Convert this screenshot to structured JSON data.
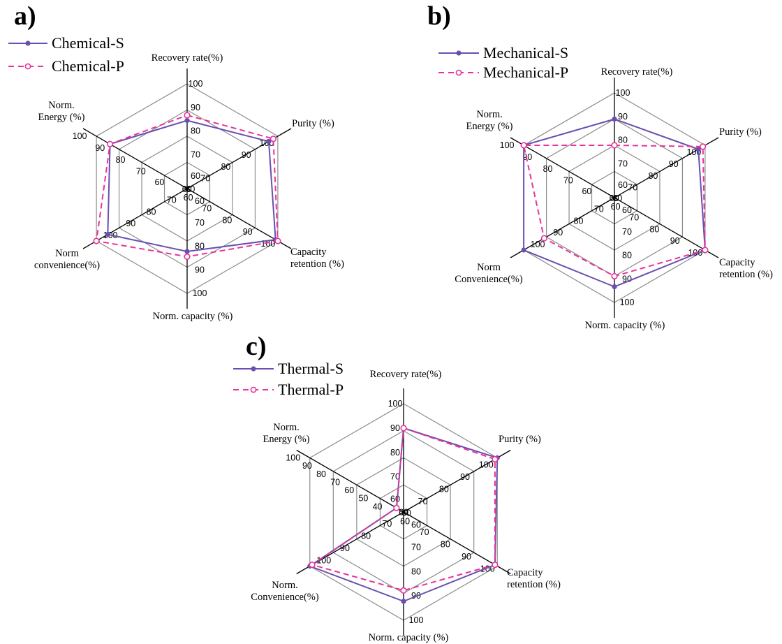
{
  "chart_data": [
    {
      "type": "radar",
      "panel": "a)",
      "axes": [
        "Recovery rate(%)",
        "Purity (%)",
        "Capacity\nretention (%)",
        "Norm. capacity (%)",
        "Norm\nconvenience(%)",
        "Norm.\nEnergy (%)"
      ],
      "rlim": [
        60,
        100
      ],
      "ring_values": [
        60,
        70,
        80,
        90,
        100
      ],
      "tick_labels": [
        [
          "60",
          "70",
          "80",
          "90",
          "100"
        ],
        [
          "60",
          "70",
          "80",
          "90",
          "100"
        ],
        [
          "60",
          "70",
          "80",
          "90",
          "100"
        ],
        [
          "60",
          "70",
          "80",
          "90",
          "100"
        ],
        [
          "60",
          "70",
          "80",
          "90",
          "100"
        ],
        [
          "60",
          "70",
          "80",
          "90",
          "100"
        ]
      ],
      "legend_position": "top-left",
      "series": [
        {
          "name": "Chemical-S",
          "color": "#6a4fb0",
          "style": "solid",
          "marker": "filled-circle",
          "values": [
            86,
            96,
            99,
            84,
            95,
            94
          ]
        },
        {
          "name": "Chemical-P",
          "color": "#e8339a",
          "style": "dashed",
          "marker": "open-circle",
          "values": [
            88,
            98,
            100,
            86,
            100,
            94
          ]
        }
      ]
    },
    {
      "type": "radar",
      "panel": "b)",
      "axes": [
        "Recovery rate(%)",
        "Purity (%)",
        "Capacity\nretention (%)",
        "Norm. capacity (%)",
        "Norm\nConvenience(%)",
        "Norm.\nEnergy (%)"
      ],
      "rlim": [
        60,
        100
      ],
      "ring_values": [
        60,
        70,
        80,
        90,
        100
      ],
      "tick_labels": [
        [
          "60",
          "70",
          "80",
          "90",
          "100"
        ],
        [
          "60",
          "70",
          "80",
          "90",
          "100"
        ],
        [
          "60",
          "70",
          "80",
          "90",
          "100"
        ],
        [
          "60",
          "70",
          "80",
          "90",
          "100"
        ],
        [
          "60",
          "70",
          "80",
          "90",
          "100"
        ],
        [
          "60",
          "70",
          "80",
          "90",
          "100"
        ]
      ],
      "legend_position": "top-left",
      "series": [
        {
          "name": "Mechanical-S",
          "color": "#6a4fb0",
          "style": "solid",
          "marker": "filled-circle",
          "values": [
            90,
            97,
            100,
            94,
            100,
            100
          ]
        },
        {
          "name": "Mechanical-P",
          "color": "#e8339a",
          "style": "dashed",
          "marker": "open-circle",
          "values": [
            80,
            99,
            100,
            90,
            91,
            100
          ]
        }
      ]
    },
    {
      "type": "radar",
      "panel": "c)",
      "axes": [
        "Recovery rate(%)",
        "Purity (%)",
        "Capacity\nretention (%)",
        "Norm. capacity (%)",
        "Norm.\nConvenience(%)",
        "Norm.\nEnergy (%)"
      ],
      "rlim": [
        60,
        100
      ],
      "ring_values": [
        60,
        70,
        80,
        90,
        100
      ],
      "tick_labels": [
        [
          "60",
          "70",
          "80",
          "90",
          "100"
        ],
        [
          "60",
          "70",
          "80",
          "90",
          "100"
        ],
        [
          "60",
          "70",
          "80",
          "90",
          "100"
        ],
        [
          "60",
          "70",
          "80",
          "90",
          "100"
        ],
        [
          "60",
          "70",
          "80",
          "90",
          "100"
        ],
        [
          "40",
          "50",
          "60",
          "70",
          "80",
          "90",
          "100"
        ]
      ],
      "legend_position": "top-left",
      "series": [
        {
          "name": "Thermal-S",
          "color": "#6a4fb0",
          "style": "solid",
          "marker": "filled-circle",
          "values": [
            91,
            100,
            99,
            93,
            100,
            63
          ]
        },
        {
          "name": "Thermal-P",
          "color": "#e8339a",
          "style": "dashed",
          "marker": "open-circle",
          "values": [
            91,
            99,
            99,
            89,
            99,
            63
          ]
        }
      ]
    }
  ]
}
